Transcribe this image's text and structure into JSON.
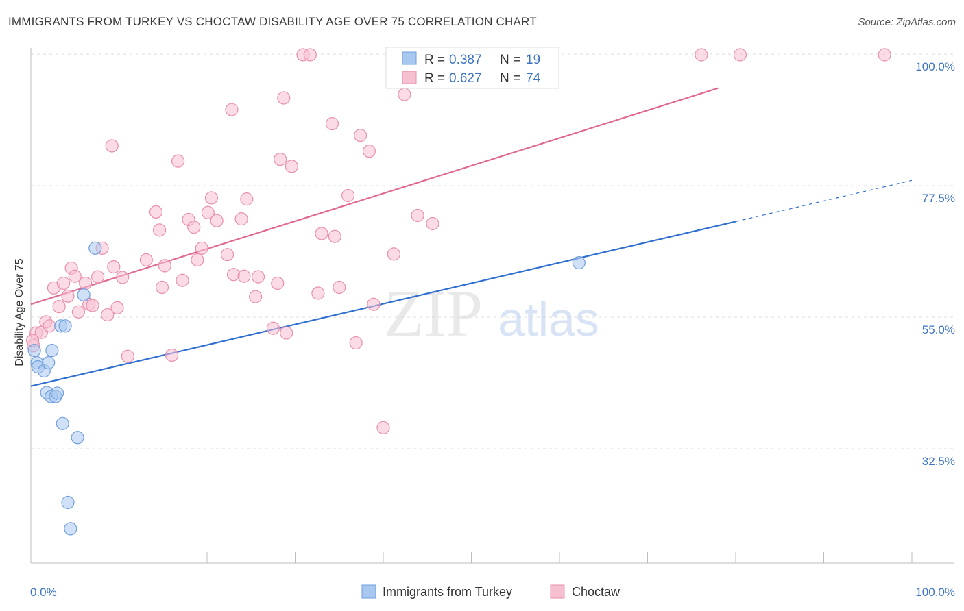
{
  "header": {
    "title": "IMMIGRANTS FROM TURKEY VS CHOCTAW DISABILITY AGE OVER 75 CORRELATION CHART",
    "source": "Source: ZipAtlas.com"
  },
  "watermark": {
    "zip": "ZIP",
    "atlas": "atlas"
  },
  "legend_top": {
    "rows": [
      {
        "r_label": "R =",
        "r_value": "0.387",
        "n_label": "N =",
        "n_value": "19"
      },
      {
        "r_label": "R =",
        "r_value": "0.627",
        "n_label": "N =",
        "n_value": "74"
      }
    ]
  },
  "chart_data": {
    "type": "scatter",
    "title": "IMMIGRANTS FROM TURKEY VS CHOCTAW DISABILITY AGE OVER 75 CORRELATION CHART",
    "xlabel": "",
    "ylabel": "Disability Age Over 75",
    "x_tick_labels": [
      "0.0%",
      "100.0%"
    ],
    "y_tick_labels": [
      "100.0%",
      "77.5%",
      "55.0%",
      "32.5%"
    ],
    "y_tick_values": [
      100.0,
      77.5,
      55.0,
      32.5
    ],
    "xlim": [
      0,
      100
    ],
    "ylim": [
      10,
      102
    ],
    "grid": true,
    "legend_position": "bottom",
    "series": [
      {
        "name": "Immigrants from Turkey",
        "color": "#a9c8f0",
        "edge": "#6f9fdc",
        "line_color": "#2f6fd0",
        "r": "0.387",
        "n": "19",
        "trend": {
          "x0": 0,
          "y0": 43.2,
          "x1": 100,
          "y1": 78.4,
          "solid_until": 80
        },
        "points": [
          [
            0.4,
            49.3
          ],
          [
            0.7,
            47.2
          ],
          [
            0.8,
            46.5
          ],
          [
            1.5,
            45.8
          ],
          [
            2.0,
            47.2
          ],
          [
            2.4,
            49.3
          ],
          [
            1.8,
            42.1
          ],
          [
            2.3,
            41.4
          ],
          [
            2.8,
            41.4
          ],
          [
            3.0,
            42.0
          ],
          [
            3.4,
            53.5
          ],
          [
            3.9,
            53.5
          ],
          [
            6.0,
            58.8
          ],
          [
            7.3,
            66.8
          ],
          [
            3.6,
            36.8
          ],
          [
            5.3,
            34.4
          ],
          [
            4.2,
            23.3
          ],
          [
            4.5,
            18.8
          ],
          [
            62.2,
            64.3
          ]
        ]
      },
      {
        "name": "Choctaw",
        "color": "#f7c0d1",
        "edge": "#e98fab",
        "line_color": "#e06a93",
        "r": "0.627",
        "n": "74",
        "trend": {
          "x0": 0,
          "y0": 57.2,
          "x1": 100,
          "y1": 104.6,
          "solid_until": 78
        },
        "points": [
          [
            0.3,
            50.1
          ],
          [
            0.6,
            52.3
          ],
          [
            1.2,
            52.4
          ],
          [
            1.7,
            54.2
          ],
          [
            2.1,
            53.5
          ],
          [
            2.6,
            60.0
          ],
          [
            3.2,
            56.8
          ],
          [
            3.7,
            60.8
          ],
          [
            4.2,
            58.6
          ],
          [
            4.6,
            63.4
          ],
          [
            5.0,
            62.0
          ],
          [
            5.4,
            55.9
          ],
          [
            6.2,
            60.8
          ],
          [
            6.6,
            57.2
          ],
          [
            7.0,
            57.0
          ],
          [
            7.6,
            61.9
          ],
          [
            8.1,
            66.8
          ],
          [
            8.7,
            55.4
          ],
          [
            9.4,
            63.6
          ],
          [
            9.8,
            56.6
          ],
          [
            10.4,
            61.8
          ],
          [
            11.0,
            48.3
          ],
          [
            9.2,
            84.3
          ],
          [
            13.1,
            64.8
          ],
          [
            14.2,
            73.0
          ],
          [
            14.6,
            69.9
          ],
          [
            14.9,
            60.1
          ],
          [
            15.2,
            63.8
          ],
          [
            16.0,
            48.5
          ],
          [
            16.7,
            81.7
          ],
          [
            17.2,
            61.3
          ],
          [
            17.9,
            71.7
          ],
          [
            18.9,
            64.8
          ],
          [
            19.4,
            66.8
          ],
          [
            18.5,
            70.4
          ],
          [
            20.1,
            72.9
          ],
          [
            20.5,
            75.4
          ],
          [
            21.1,
            71.5
          ],
          [
            22.3,
            65.7
          ],
          [
            22.8,
            90.5
          ],
          [
            23.0,
            62.3
          ],
          [
            23.9,
            71.8
          ],
          [
            24.5,
            75.2
          ],
          [
            24.2,
            62.0
          ],
          [
            25.5,
            58.5
          ],
          [
            25.8,
            61.9
          ],
          [
            27.5,
            53.1
          ],
          [
            28.0,
            60.8
          ],
          [
            28.3,
            82.0
          ],
          [
            28.7,
            92.5
          ],
          [
            29.0,
            52.3
          ],
          [
            29.6,
            80.8
          ],
          [
            30.9,
            100.2
          ],
          [
            31.7,
            100.2
          ],
          [
            32.6,
            59.1
          ],
          [
            33.0,
            69.3
          ],
          [
            34.2,
            88.1
          ],
          [
            35.0,
            60.1
          ],
          [
            34.5,
            68.8
          ],
          [
            36.0,
            75.8
          ],
          [
            36.9,
            50.6
          ],
          [
            37.4,
            86.1
          ],
          [
            38.4,
            83.4
          ],
          [
            38.9,
            57.2
          ],
          [
            40.0,
            36.1
          ],
          [
            41.2,
            65.8
          ],
          [
            42.4,
            93.1
          ],
          [
            42.8,
            100.2
          ],
          [
            43.9,
            72.4
          ],
          [
            45.6,
            71.0
          ],
          [
            76.1,
            100.2
          ],
          [
            80.5,
            100.2
          ],
          [
            96.9,
            100.2
          ],
          [
            0.2,
            51.0
          ]
        ]
      }
    ]
  }
}
